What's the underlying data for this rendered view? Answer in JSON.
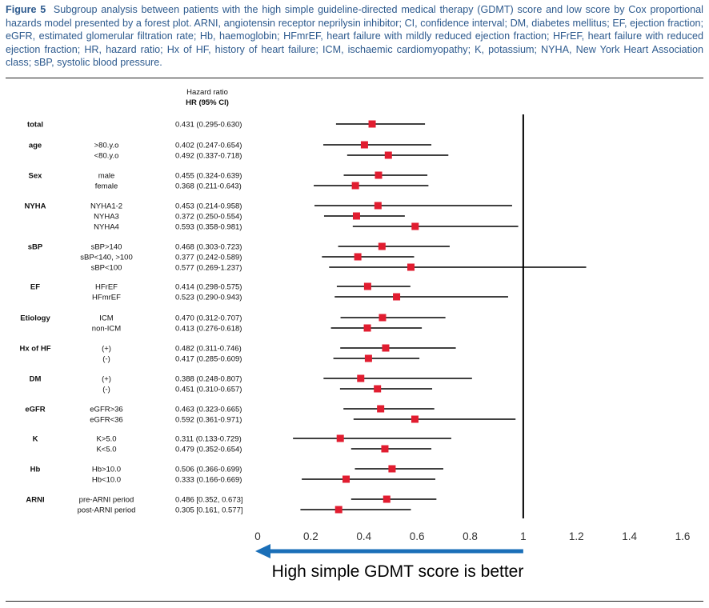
{
  "caption": {
    "label": "Figure 5",
    "text": "Subgroup analysis between patients with the high simple guideline-directed medical therapy (GDMT) score and low score by Cox proportional hazards model presented by a forest plot. ARNI, angiotensin receptor neprilysin inhibitor; CI, confidence interval; DM, diabetes mellitus; EF, ejection fraction; eGFR, estimated glomerular filtration rate; Hb, haemoglobin; HFmrEF, heart failure with mildly reduced ejection fraction; HFrEF, heart failure with reduced ejection fraction; HR, hazard ratio; Hx of HF, history of heart failure; ICM, ischaemic cardiomyopathy; K, potassium; NYHA, New York Heart Association class; sBP, systolic blood pressure."
  },
  "colors": {
    "marker": "#e11d30",
    "arrow": "#1a6fb8",
    "caption": "#2d5a8e",
    "line": "#000000"
  },
  "chart_data": {
    "type": "forest",
    "header": {
      "line1": "Hazard ratio",
      "line2": "HR (95% CI)"
    },
    "reference_line": 1,
    "xlim": [
      0,
      1.6
    ],
    "xticks": [
      "0",
      "0.2",
      "0.4",
      "0.6",
      "0.8",
      "1",
      "1.2",
      "1.4",
      "1.6"
    ],
    "arrow_label": "High simple GDMT score is better",
    "rows": [
      {
        "group": "total",
        "subgroup": "",
        "hr": 0.431,
        "lo": 0.295,
        "hi": 0.63,
        "text": "0.431 (0.295-0.630)"
      },
      {
        "group": "age",
        "subgroup": ">80.y.o",
        "hr": 0.402,
        "lo": 0.247,
        "hi": 0.654,
        "text": "0.402 (0.247-0.654)"
      },
      {
        "group": "",
        "subgroup": "<80.y.o",
        "hr": 0.492,
        "lo": 0.337,
        "hi": 0.718,
        "text": "0.492 (0.337-0.718)"
      },
      {
        "group": "Sex",
        "subgroup": "male",
        "hr": 0.455,
        "lo": 0.324,
        "hi": 0.639,
        "text": "0.455 (0.324-0.639)"
      },
      {
        "group": "",
        "subgroup": "female",
        "hr": 0.368,
        "lo": 0.211,
        "hi": 0.643,
        "text": "0.368 (0.211-0.643)"
      },
      {
        "group": "NYHA",
        "subgroup": "NYHA1-2",
        "hr": 0.453,
        "lo": 0.214,
        "hi": 0.958,
        "text": "0.453 (0.214-0.958)"
      },
      {
        "group": "",
        "subgroup": "NYHA3",
        "hr": 0.372,
        "lo": 0.25,
        "hi": 0.554,
        "text": "0.372 (0.250-0.554)"
      },
      {
        "group": "",
        "subgroup": "NYHA4",
        "hr": 0.593,
        "lo": 0.358,
        "hi": 0.981,
        "text": "0.593 (0.358-0.981)"
      },
      {
        "group": "sBP",
        "subgroup": "sBP>140",
        "hr": 0.468,
        "lo": 0.303,
        "hi": 0.723,
        "text": "0.468 (0.303-0.723)"
      },
      {
        "group": "",
        "subgroup": "sBP<140, >100",
        "hr": 0.377,
        "lo": 0.242,
        "hi": 0.589,
        "text": "0.377 (0.242-0.589)"
      },
      {
        "group": "",
        "subgroup": "sBP<100",
        "hr": 0.577,
        "lo": 0.269,
        "hi": 1.237,
        "text": "0.577 (0.269-1.237)"
      },
      {
        "group": "EF",
        "subgroup": "HFrEF",
        "hr": 0.414,
        "lo": 0.298,
        "hi": 0.575,
        "text": "0.414 (0.298-0.575)"
      },
      {
        "group": "",
        "subgroup": "HFmrEF",
        "hr": 0.523,
        "lo": 0.29,
        "hi": 0.943,
        "text": "0.523 (0.290-0.943)"
      },
      {
        "group": "Etiology",
        "subgroup": "ICM",
        "hr": 0.47,
        "lo": 0.312,
        "hi": 0.707,
        "text": "0.470 (0.312-0.707)"
      },
      {
        "group": "",
        "subgroup": "non-ICM",
        "hr": 0.413,
        "lo": 0.276,
        "hi": 0.618,
        "text": "0.413 (0.276-0.618)"
      },
      {
        "group": "Hx of HF",
        "subgroup": "(+)",
        "hr": 0.482,
        "lo": 0.311,
        "hi": 0.746,
        "text": "0.482 (0.311-0.746)"
      },
      {
        "group": "",
        "subgroup": "(-)",
        "hr": 0.417,
        "lo": 0.285,
        "hi": 0.609,
        "text": "0.417 (0.285-0.609)"
      },
      {
        "group": "DM",
        "subgroup": "(+)",
        "hr": 0.388,
        "lo": 0.248,
        "hi": 0.807,
        "text": "0.388 (0.248-0.807)"
      },
      {
        "group": "",
        "subgroup": "(-)",
        "hr": 0.451,
        "lo": 0.31,
        "hi": 0.657,
        "text": "0.451 (0.310-0.657)"
      },
      {
        "group": "eGFR",
        "subgroup": "eGFR>36",
        "hr": 0.463,
        "lo": 0.323,
        "hi": 0.665,
        "text": "0.463 (0.323-0.665)"
      },
      {
        "group": "",
        "subgroup": "eGFR<36",
        "hr": 0.592,
        "lo": 0.361,
        "hi": 0.971,
        "text": "0.592 (0.361-0.971)"
      },
      {
        "group": "K",
        "subgroup": "K>5.0",
        "hr": 0.311,
        "lo": 0.133,
        "hi": 0.729,
        "text": "0.311 (0.133-0.729)"
      },
      {
        "group": "",
        "subgroup": "K<5.0",
        "hr": 0.479,
        "lo": 0.352,
        "hi": 0.654,
        "text": "0.479 (0.352-0.654)"
      },
      {
        "group": "Hb",
        "subgroup": "Hb>10.0",
        "hr": 0.506,
        "lo": 0.366,
        "hi": 0.699,
        "text": "0.506 (0.366-0.699)"
      },
      {
        "group": "",
        "subgroup": "Hb<10.0",
        "hr": 0.333,
        "lo": 0.166,
        "hi": 0.669,
        "text": "0.333 (0.166-0.669)"
      },
      {
        "group": "ARNI",
        "subgroup": "pre-ARNI period",
        "hr": 0.486,
        "lo": 0.352,
        "hi": 0.673,
        "text": "0.486 [0.352, 0.673]"
      },
      {
        "group": "",
        "subgroup": "post-ARNI period",
        "hr": 0.305,
        "lo": 0.161,
        "hi": 0.577,
        "text": "0.305 [0.161, 0.577]"
      }
    ]
  }
}
